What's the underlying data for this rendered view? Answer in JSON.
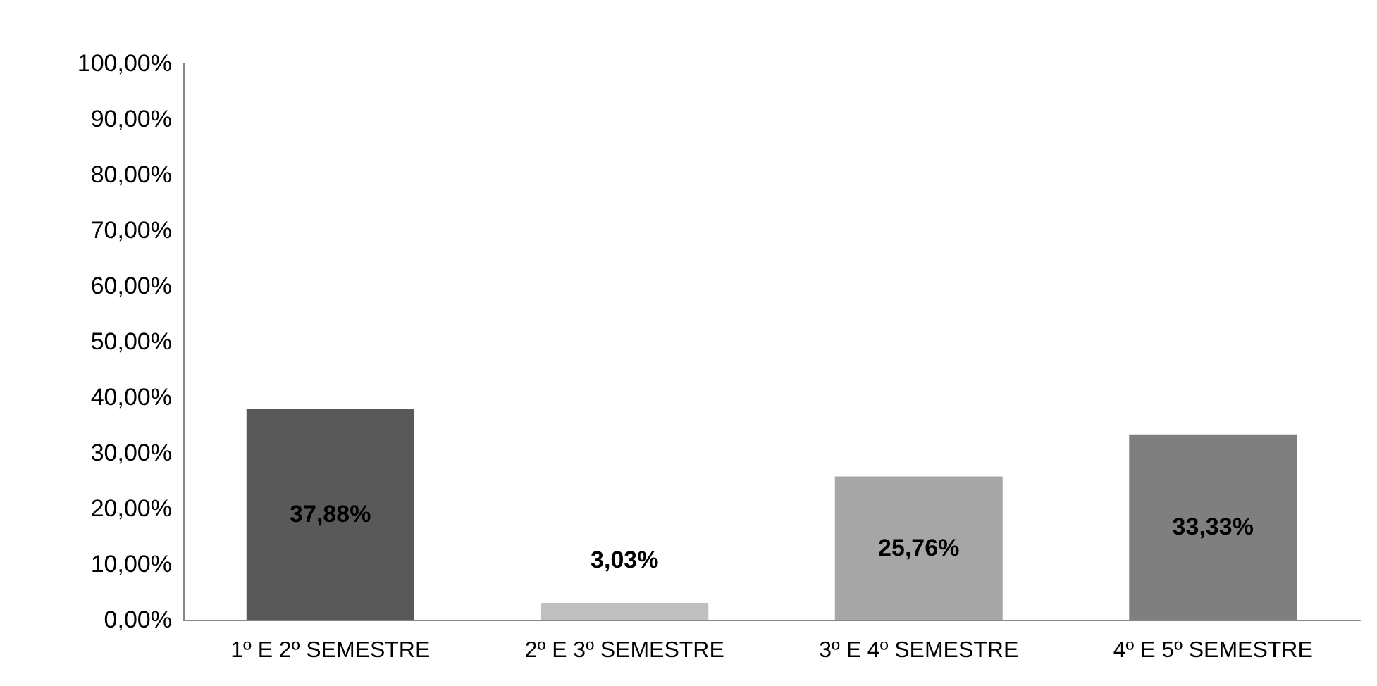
{
  "chart_data": {
    "type": "bar",
    "categories": [
      "1º E 2º SEMESTRE",
      "2º E 3º SEMESTRE",
      "3º E 4º SEMESTRE",
      "4º E 5º SEMESTRE"
    ],
    "values": [
      37.88,
      3.03,
      25.76,
      33.33
    ],
    "colors": [
      "#595959",
      "#bfbfbf",
      "#a6a6a6",
      "#7f7f7f"
    ],
    "value_labels": [
      "37,88%",
      "3,03%",
      "25,76%",
      "33,33%"
    ],
    "ylim": [
      0,
      100
    ],
    "yticks": [
      {
        "value": 0,
        "label": "0,00%"
      },
      {
        "value": 10,
        "label": "10,00%"
      },
      {
        "value": 20,
        "label": "20,00%"
      },
      {
        "value": 30,
        "label": "30,00%"
      },
      {
        "value": 40,
        "label": "40,00%"
      },
      {
        "value": 50,
        "label": "50,00%"
      },
      {
        "value": 60,
        "label": "60,00%"
      },
      {
        "value": 70,
        "label": "70,00%"
      },
      {
        "value": 80,
        "label": "80,00%"
      },
      {
        "value": 90,
        "label": "90,00%"
      },
      {
        "value": 100,
        "label": "100,00%"
      }
    ],
    "grid": false
  }
}
